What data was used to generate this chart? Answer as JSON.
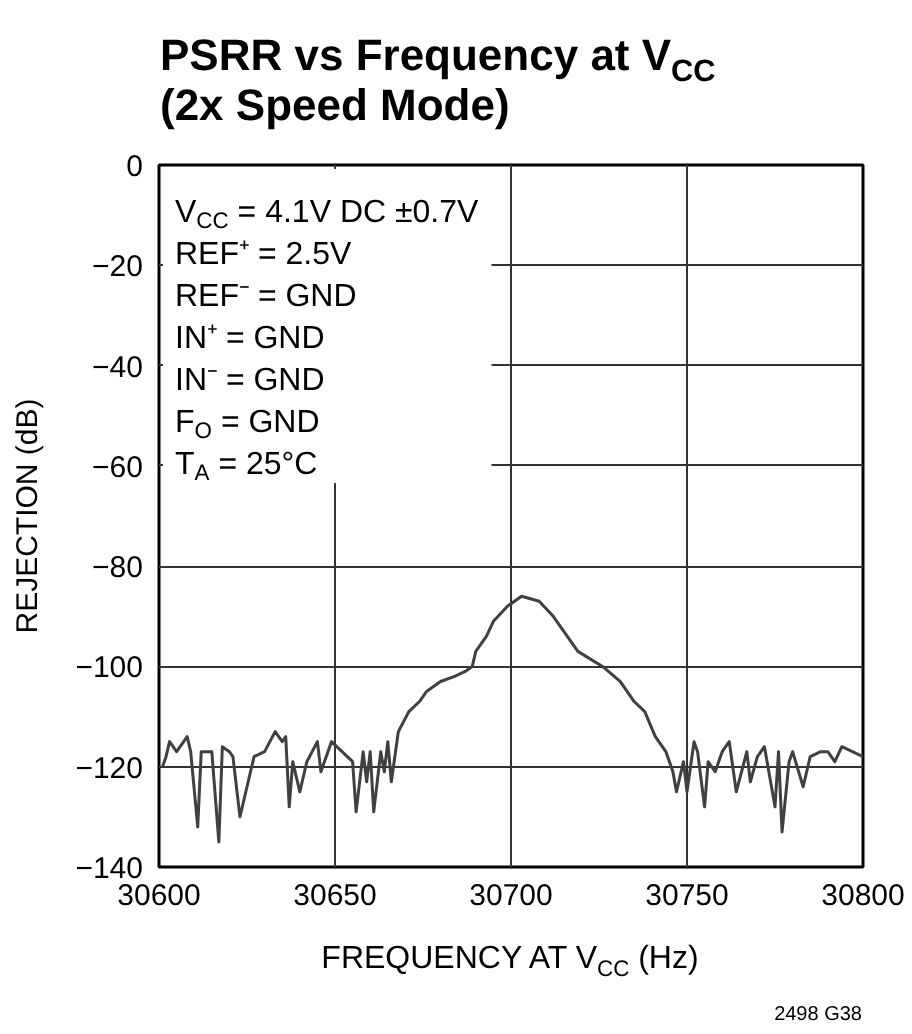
{
  "chart_data": {
    "type": "line",
    "title": "PSRR vs Frequency at V$_{CC}$\n(2x Speed Mode)",
    "xlabel": "FREQUENCY AT V$_{CC}$ (Hz)",
    "ylabel": "REJECTION (dB)",
    "annotations": [
      "V$_{CC}$ = 4.1V DC ±0.7V",
      "REF⁺ = 2.5V",
      "REF⁻ = GND",
      "IN⁺ = GND",
      "IN⁻ = GND",
      "F$_{O}$ = GND",
      "T$_{A}$ = 25°C",
      "2498 G38"
    ],
    "x": [
      30601,
      30602,
      30603,
      30605,
      30608,
      30609,
      30611,
      30612,
      30615,
      30617,
      30618,
      30620,
      30621,
      30623,
      30625,
      30627,
      30630,
      30633,
      30635,
      30636,
      30637,
      30638,
      30640,
      30642,
      30645,
      30646,
      30649,
      30652,
      30655,
      30656,
      30658,
      30659,
      30660,
      30661,
      30663,
      30664,
      30665,
      30666,
      30668,
      30671,
      30674,
      30676,
      30680,
      30684,
      30687,
      30689,
      30690,
      30693,
      30695,
      30699,
      30703,
      30708,
      30712,
      30715,
      30719,
      30726,
      30731,
      30735,
      30738,
      30741,
      30744,
      30746,
      30747,
      30749,
      30750,
      30752,
      30753,
      30755,
      30756,
      30758,
      30760,
      30762,
      30764,
      30767,
      30768,
      30770,
      30772,
      30775,
      30776,
      30777,
      30779,
      30780,
      30783,
      30785,
      30788,
      30790,
      30792,
      30794,
      30800
    ],
    "series": [
      {
        "color": "#404040",
        "values": [
          -120,
          -118,
          -115,
          -117,
          -114,
          -117,
          -132,
          -117,
          -117,
          -135,
          -116,
          -117,
          -118,
          -130,
          -124,
          -118,
          -117,
          -113,
          -115,
          -114,
          -128,
          -119,
          -125,
          -119,
          -115,
          -121,
          -115,
          -117,
          -119,
          -129,
          -117,
          -123,
          -117,
          -129,
          -117,
          -121,
          -115,
          -123,
          -113,
          -109,
          -107,
          -105,
          -103,
          -102,
          -101,
          -100,
          -97,
          -94,
          -91,
          -88,
          -86,
          -87,
          -90,
          -93,
          -97,
          -100,
          -103,
          -107,
          -109,
          -114,
          -117,
          -121,
          -125,
          -119,
          -125,
          -115,
          -117,
          -128,
          -119,
          -121,
          -117,
          -115,
          -125,
          -117,
          -123,
          -118,
          -116,
          -128,
          -117,
          -133,
          -119,
          -117,
          -124,
          -118,
          -117,
          -117,
          -119,
          -116,
          -118
        ]
      }
    ],
    "xlim": [
      30600,
      30800
    ],
    "xticks": [
      30600,
      30650,
      30700,
      30750,
      30800
    ],
    "ylim": [
      -140,
      0
    ],
    "yticks": [
      -140,
      -120,
      -100,
      -80,
      -60,
      -40,
      -20,
      0
    ],
    "grid": true,
    "line_style": "solid"
  }
}
